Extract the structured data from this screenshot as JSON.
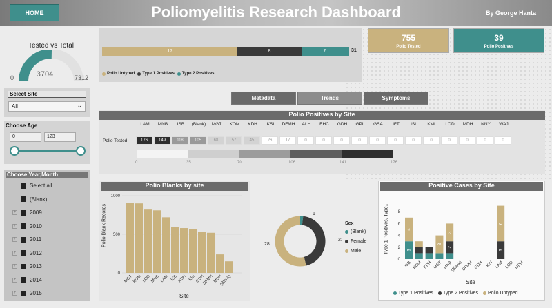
{
  "header": {
    "home_label": "HOME",
    "title": "Poliomyelitis Research Dashboard",
    "author": "By George Hanta"
  },
  "gauge": {
    "title": "Tested vs Total",
    "value": "3704",
    "min": "0",
    "max": "7312",
    "fraction": 0.507
  },
  "site_filter": {
    "label": "Select Site",
    "selected": "All"
  },
  "age_filter": {
    "label": "Choose Age",
    "min": "0",
    "max": "123"
  },
  "year_filter": {
    "label": "Choose Year,Month",
    "items": [
      "Select all",
      "(Blank)",
      "2009",
      "2010",
      "2011",
      "2012",
      "2013",
      "2014",
      "2015"
    ]
  },
  "stacked_bar": {
    "segments": [
      {
        "name": "Polio Untyped",
        "value": 17,
        "color": "#c9b27e"
      },
      {
        "name": "Type 1 Positives",
        "value": 8,
        "color": "#3a3a3a"
      },
      {
        "name": "Type 2 Positives",
        "value": 6,
        "color": "#3f8f8c"
      }
    ],
    "total": "31",
    "legend": [
      "Polio Untyped",
      "Type 1 Positives",
      "Type 2 Positives"
    ]
  },
  "cards": [
    {
      "value": "755",
      "caption": "Polio Tested",
      "color": "#c9b27e"
    },
    {
      "value": "39",
      "caption": "Polio  Positives",
      "color": "#3f8f8c"
    }
  ],
  "tabs": [
    {
      "label": "Metadata",
      "color": "#6a6a6a"
    },
    {
      "label": "Trends",
      "color": "#8c8c8c"
    },
    {
      "label": "Symptoms",
      "color": "#6a6a6a"
    }
  ],
  "matrix": {
    "title": "Polio Positives by Site",
    "row_label": "Polio Tested",
    "columns": [
      "LAM",
      "MNB",
      "ISB",
      "(Blank)",
      "MGT",
      "KOM",
      "KDH",
      "KSI",
      "DFMH",
      "ALH",
      "EHC",
      "GDH",
      "GPL",
      "GSA",
      "IFT",
      "ISL",
      "KML",
      "LOD",
      "MDH",
      "NNY",
      "WAJ"
    ],
    "values": [
      "176",
      "149",
      "118",
      "105",
      "68",
      "57",
      "45",
      "26",
      "17",
      "0",
      "0",
      "0",
      "0",
      "0",
      "0",
      "0",
      "0",
      "0",
      "0",
      "0",
      "0"
    ],
    "scale": [
      "0",
      "35",
      "70",
      "106",
      "141",
      "176"
    ]
  },
  "blanks_chart": {
    "title": "Polio Blanks by site",
    "xlabel": "Site",
    "ylabel": "Polio Blank Records",
    "yticks": [
      "0",
      "500",
      "1000"
    ]
  },
  "donut": {
    "legend_title": "Sex",
    "legend": [
      "(Blank)",
      "Female",
      "Male"
    ],
    "labels": [
      "1",
      "23",
      "28"
    ]
  },
  "positives_chart": {
    "title": "Positive Cases by Site",
    "xlabel": "Site",
    "ylabel": "Type 1 Positives, Type...",
    "yticks": [
      "0",
      "2",
      "4",
      "6",
      "8"
    ],
    "legend": [
      "Type 1 Positives",
      "Type 2 Positives",
      "Polio Untyped"
    ]
  },
  "chart_data": [
    {
      "type": "bar",
      "title": "Polio Blanks by site",
      "xlabel": "Site",
      "ylabel": "Polio Blank Records",
      "ylim": [
        0,
        1000
      ],
      "categories": [
        "MGT",
        "KOM",
        "LOD",
        "MNB",
        "LAM",
        "ISB",
        "KDH",
        "KSI",
        "GDH",
        "DFMH",
        "MDH",
        "(Blank)"
      ],
      "values": [
        910,
        900,
        820,
        810,
        720,
        590,
        580,
        570,
        530,
        520,
        240,
        150
      ]
    },
    {
      "type": "pie",
      "title": "",
      "legend_title": "Sex",
      "categories": [
        "(Blank)",
        "Female",
        "Male"
      ],
      "values": [
        1,
        23,
        28
      ],
      "colors": [
        "#3f8f8c",
        "#3a3a3a",
        "#c9b27e"
      ]
    },
    {
      "type": "bar",
      "stacked": true,
      "title": "Positive Cases by Site",
      "xlabel": "Site",
      "ylabel": "Type 1 Positives, Type...",
      "ylim": [
        0,
        10
      ],
      "categories": [
        "ISB",
        "KOM",
        "KDH",
        "MGT",
        "MNB",
        "(Blank)",
        "DFMH",
        "GDH",
        "KSI",
        "LAM",
        "LOD",
        "MDH"
      ],
      "series": [
        {
          "name": "Type 1 Positives",
          "values": [
            3,
            1,
            1,
            1,
            1,
            0,
            0,
            0,
            0,
            0,
            0,
            0
          ],
          "color": "#3f8f8c"
        },
        {
          "name": "Type 2 Positives",
          "values": [
            0,
            1,
            1,
            0,
            2,
            0,
            0,
            0,
            0,
            3,
            0,
            0
          ],
          "color": "#3a3a3a"
        },
        {
          "name": "Polio Untyped",
          "values": [
            4,
            1,
            0,
            3,
            3,
            0,
            0,
            0,
            0,
            6,
            0,
            0
          ],
          "color": "#c9b27e"
        }
      ],
      "data_labels": {
        "ISB": "4",
        "LAM": "6",
        "MNB": "2",
        "ISB_t1": "3"
      }
    }
  ]
}
